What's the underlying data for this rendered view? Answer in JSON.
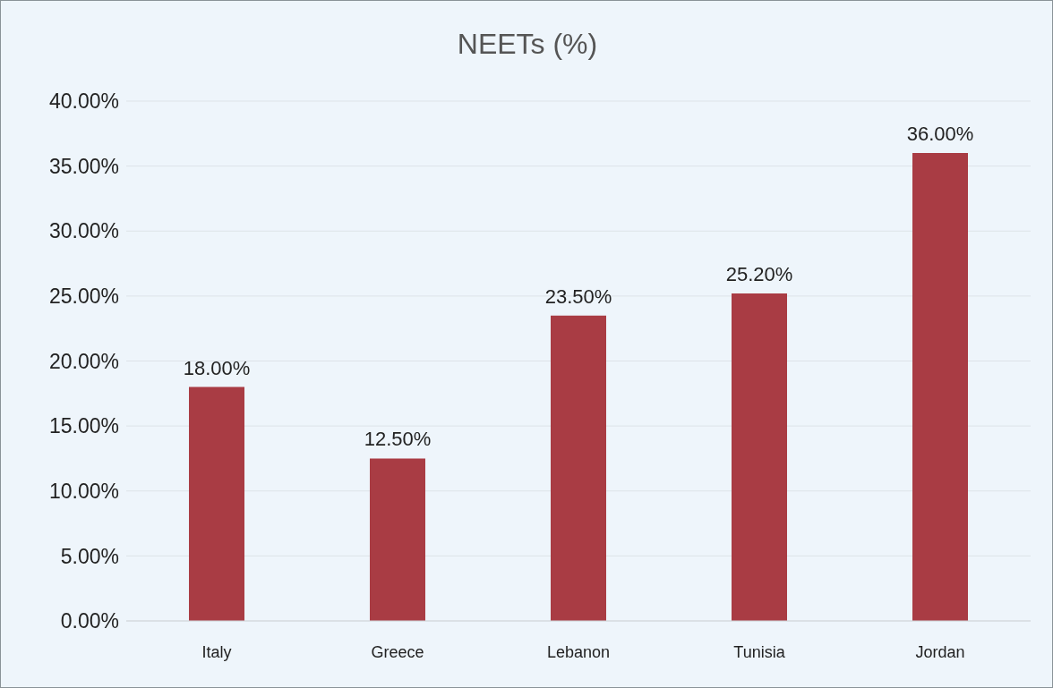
{
  "chart_data": {
    "type": "bar",
    "title": "NEETs (%)",
    "categories": [
      "Italy",
      "Greece",
      "Lebanon",
      "Tunisia",
      "Jordan"
    ],
    "values": [
      18,
      12.5,
      23.5,
      25.2,
      36
    ],
    "value_labels": [
      "18.00%",
      "12.50%",
      "23.50%",
      "25.20%",
      "36.00%"
    ],
    "color": "#a93c44",
    "ylim": [
      0,
      40
    ],
    "yticks": [
      {
        "value": 0,
        "label": "0.00%"
      },
      {
        "value": 5,
        "label": "5.00%"
      },
      {
        "value": 10,
        "label": "10.00%"
      },
      {
        "value": 15,
        "label": "15.00%"
      },
      {
        "value": 20,
        "label": "20.00%"
      },
      {
        "value": 25,
        "label": "25.00%"
      },
      {
        "value": 30,
        "label": "30.00%"
      },
      {
        "value": 35,
        "label": "35.00%"
      },
      {
        "value": 40,
        "label": "40.00%"
      }
    ],
    "grid": "y"
  }
}
